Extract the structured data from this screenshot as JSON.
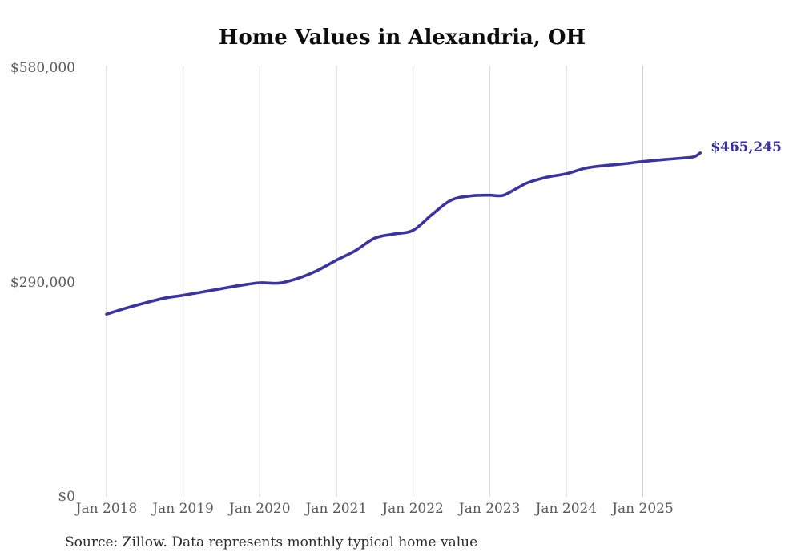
{
  "chart": {
    "title": "Home Values in Alexandria, OH",
    "source": "Source: Zillow. Data represents monthly typical home value",
    "end_label": "$465,245"
  },
  "chart_data": {
    "type": "line",
    "title": "Home Values in Alexandria, OH",
    "series_name": "Monthly typical home value",
    "line_color": "#3b33a1",
    "grid_color": "#cccccc",
    "axis_label_color": "#5a5a5a",
    "end_label_color": "#38309e",
    "grid": "vertical-only",
    "legend": "none",
    "ylim": [
      0,
      580000
    ],
    "y_ticks": [
      {
        "value": 580000,
        "label": "$580,000"
      },
      {
        "value": 290000,
        "label": "$290,000"
      },
      {
        "value": 0,
        "label": "$0"
      }
    ],
    "x_ticks": [
      {
        "date": "2018-01",
        "label": "Jan 2018"
      },
      {
        "date": "2019-01",
        "label": "Jan 2019"
      },
      {
        "date": "2020-01",
        "label": "Jan 2020"
      },
      {
        "date": "2021-01",
        "label": "Jan 2021"
      },
      {
        "date": "2022-01",
        "label": "Jan 2022"
      },
      {
        "date": "2023-01",
        "label": "Jan 2023"
      },
      {
        "date": "2024-01",
        "label": "Jan 2024"
      },
      {
        "date": "2025-01",
        "label": "Jan 2025"
      }
    ],
    "final_value": 465245,
    "points": [
      {
        "date": "2018-01",
        "value": 247000
      },
      {
        "date": "2018-04",
        "value": 255000
      },
      {
        "date": "2018-07",
        "value": 262000
      },
      {
        "date": "2018-10",
        "value": 268500
      },
      {
        "date": "2019-01",
        "value": 272500
      },
      {
        "date": "2019-04",
        "value": 277000
      },
      {
        "date": "2019-07",
        "value": 281500
      },
      {
        "date": "2019-10",
        "value": 286000
      },
      {
        "date": "2020-01",
        "value": 289500
      },
      {
        "date": "2020-04",
        "value": 289000
      },
      {
        "date": "2020-07",
        "value": 295500
      },
      {
        "date": "2020-10",
        "value": 306000
      },
      {
        "date": "2021-01",
        "value": 320000
      },
      {
        "date": "2021-04",
        "value": 333000
      },
      {
        "date": "2021-07",
        "value": 350000
      },
      {
        "date": "2021-10",
        "value": 355500
      },
      {
        "date": "2022-01",
        "value": 360500
      },
      {
        "date": "2022-04",
        "value": 382000
      },
      {
        "date": "2022-07",
        "value": 401500
      },
      {
        "date": "2022-10",
        "value": 407000
      },
      {
        "date": "2023-01",
        "value": 408000
      },
      {
        "date": "2023-03",
        "value": 407500
      },
      {
        "date": "2023-05",
        "value": 416000
      },
      {
        "date": "2023-07",
        "value": 425000
      },
      {
        "date": "2023-10",
        "value": 432500
      },
      {
        "date": "2024-01",
        "value": 437000
      },
      {
        "date": "2024-04",
        "value": 444500
      },
      {
        "date": "2024-07",
        "value": 448000
      },
      {
        "date": "2024-10",
        "value": 450500
      },
      {
        "date": "2025-01",
        "value": 453500
      },
      {
        "date": "2025-04",
        "value": 456000
      },
      {
        "date": "2025-07",
        "value": 458000
      },
      {
        "date": "2025-09",
        "value": 460000
      },
      {
        "date": "2025-10",
        "value": 465245
      }
    ]
  }
}
